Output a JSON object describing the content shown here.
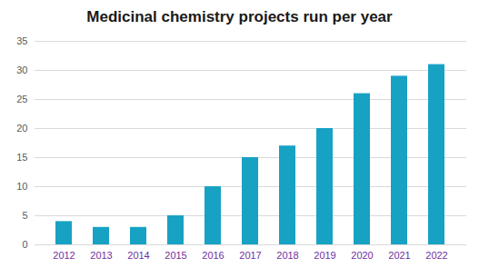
{
  "chart_data": {
    "type": "bar",
    "title": "Medicinal chemistry projects run per year",
    "categories": [
      "2012",
      "2013",
      "2014",
      "2015",
      "2016",
      "2017",
      "2018",
      "2019",
      "2020",
      "2021",
      "2022"
    ],
    "values": [
      4,
      3,
      3,
      5,
      10,
      15,
      17,
      20,
      26,
      29,
      31
    ],
    "color": "#17a2c4",
    "ylim": [
      0,
      35
    ],
    "yticks": [
      0,
      5,
      10,
      15,
      20,
      25,
      30,
      35
    ],
    "grid": true
  }
}
